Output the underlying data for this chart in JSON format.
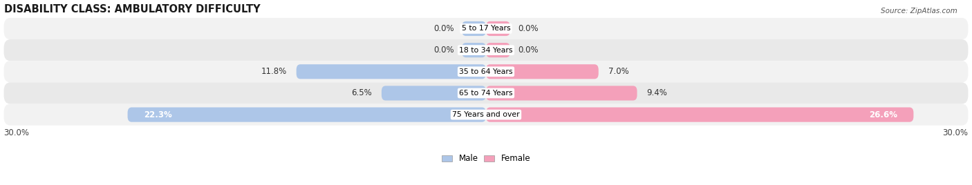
{
  "title": "DISABILITY CLASS: AMBULATORY DIFFICULTY",
  "source": "Source: ZipAtlas.com",
  "categories": [
    "5 to 17 Years",
    "18 to 34 Years",
    "35 to 64 Years",
    "65 to 74 Years",
    "75 Years and over"
  ],
  "male_values": [
    0.0,
    0.0,
    11.8,
    6.5,
    22.3
  ],
  "female_values": [
    0.0,
    0.0,
    7.0,
    9.4,
    26.6
  ],
  "male_color": "#adc6e8",
  "female_color": "#f4a0ba",
  "female_color_bright": "#e8578a",
  "xlim": 30.0,
  "title_fontsize": 10.5,
  "label_fontsize": 8.5,
  "tick_fontsize": 8.5,
  "bar_height": 0.68,
  "min_stub": 1.5,
  "row_colors": [
    "#f2f2f2",
    "#e9e9e9"
  ]
}
